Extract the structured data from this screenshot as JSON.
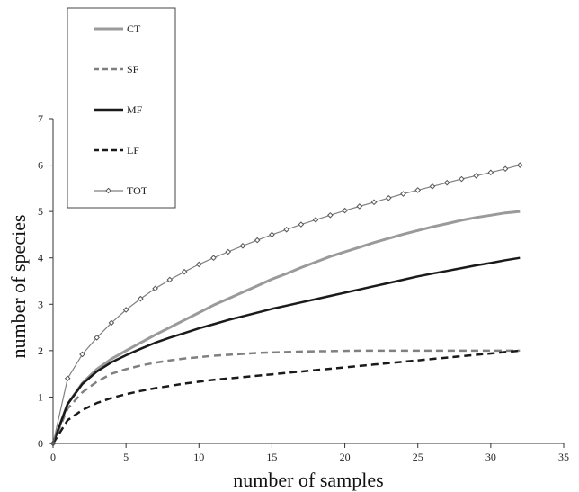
{
  "chart_data": {
    "type": "line",
    "xlabel": "number of samples",
    "ylabel": "number of species",
    "xlim": [
      0,
      35
    ],
    "ylim": [
      0,
      7
    ],
    "xticks": [
      0,
      5,
      10,
      15,
      20,
      25,
      30,
      35
    ],
    "yticks": [
      0,
      1,
      2,
      3,
      4,
      5,
      6,
      7
    ],
    "grid": false,
    "legend_position": "top-left",
    "x": [
      0,
      1,
      2,
      3,
      4,
      5,
      6,
      7,
      8,
      9,
      10,
      11,
      12,
      13,
      14,
      15,
      16,
      17,
      18,
      19,
      20,
      21,
      22,
      23,
      24,
      25,
      26,
      27,
      28,
      29,
      30,
      31,
      32
    ],
    "series": [
      {
        "name": "CT",
        "color": "#9a9a9a",
        "dash": "solid",
        "width": 3,
        "marker": false,
        "values": [
          0,
          0.85,
          1.3,
          1.6,
          1.82,
          2.0,
          2.17,
          2.34,
          2.5,
          2.66,
          2.82,
          2.98,
          3.12,
          3.26,
          3.4,
          3.54,
          3.66,
          3.79,
          3.91,
          4.03,
          4.13,
          4.23,
          4.33,
          4.42,
          4.51,
          4.59,
          4.67,
          4.74,
          4.81,
          4.87,
          4.92,
          4.97,
          5.0
        ]
      },
      {
        "name": "SF",
        "color": "#808080",
        "dash": "dashed",
        "width": 2.5,
        "marker": false,
        "values": [
          0,
          0.75,
          1.1,
          1.33,
          1.5,
          1.6,
          1.68,
          1.74,
          1.79,
          1.83,
          1.86,
          1.89,
          1.91,
          1.93,
          1.95,
          1.96,
          1.97,
          1.98,
          1.985,
          1.99,
          1.995,
          2.0,
          2.0,
          2.0,
          2.0,
          2.0,
          2.0,
          2.0,
          2.0,
          2.0,
          2.0,
          2.0,
          2.0
        ]
      },
      {
        "name": "MF",
        "color": "#1a1a1a",
        "dash": "solid",
        "width": 2.5,
        "marker": false,
        "values": [
          0,
          0.85,
          1.28,
          1.55,
          1.75,
          1.9,
          2.04,
          2.17,
          2.28,
          2.38,
          2.48,
          2.57,
          2.66,
          2.74,
          2.82,
          2.9,
          2.97,
          3.04,
          3.11,
          3.18,
          3.25,
          3.32,
          3.39,
          3.46,
          3.53,
          3.6,
          3.66,
          3.72,
          3.78,
          3.84,
          3.89,
          3.95,
          4.0
        ]
      },
      {
        "name": "LF",
        "color": "#1a1a1a",
        "dash": "dashed",
        "width": 2.5,
        "marker": false,
        "values": [
          0,
          0.5,
          0.72,
          0.87,
          0.98,
          1.06,
          1.13,
          1.19,
          1.24,
          1.29,
          1.33,
          1.37,
          1.4,
          1.43,
          1.46,
          1.49,
          1.52,
          1.55,
          1.58,
          1.61,
          1.64,
          1.67,
          1.7,
          1.73,
          1.76,
          1.79,
          1.82,
          1.85,
          1.88,
          1.91,
          1.94,
          1.97,
          2.0
        ]
      },
      {
        "name": "TOT",
        "color": "#808080",
        "dash": "solid",
        "width": 1.2,
        "marker": true,
        "values": [
          0,
          1.4,
          1.92,
          2.28,
          2.6,
          2.88,
          3.12,
          3.34,
          3.53,
          3.7,
          3.86,
          4.0,
          4.13,
          4.26,
          4.38,
          4.5,
          4.61,
          4.72,
          4.82,
          4.92,
          5.02,
          5.11,
          5.2,
          5.29,
          5.38,
          5.46,
          5.54,
          5.62,
          5.7,
          5.77,
          5.84,
          5.92,
          6.0
        ]
      }
    ]
  }
}
